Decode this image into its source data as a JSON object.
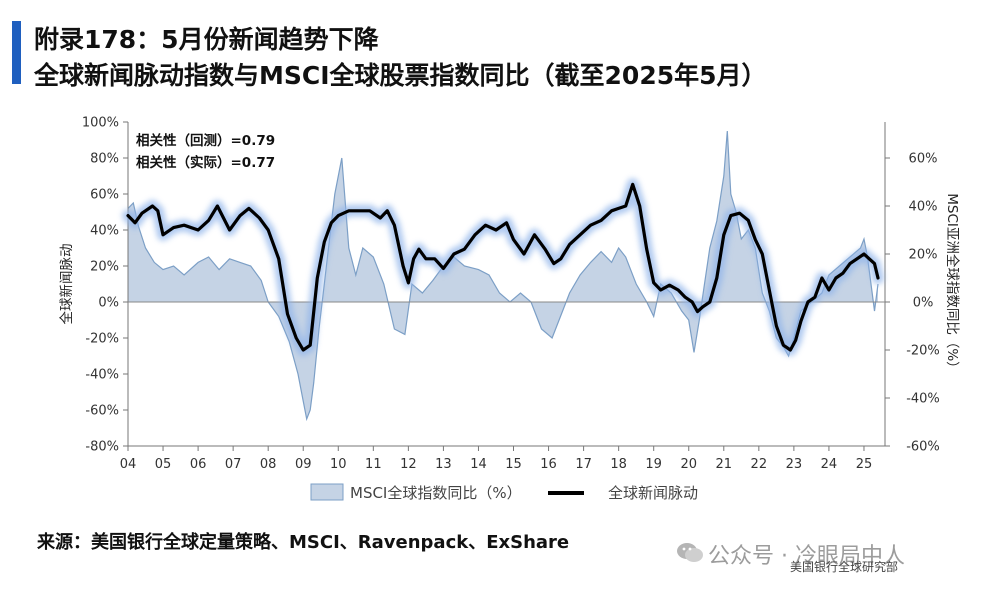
{
  "header": {
    "title_line1": "附录178：5月份新闻趋势下降",
    "title_line2": "全球新闻脉动指数与MSCI全球股票指数同比（截至2025年5月）",
    "accent_color": "#1f5fbf"
  },
  "footer": {
    "source": "来源：美国银行全球定量策略、MSCI、Ravenpack、ExShare",
    "watermark": "公众号 · 冷眼局中人",
    "watermark_icon": "wechat-icon",
    "watermark_sub": "美国银行全球研究部"
  },
  "chart_data": {
    "type": "area",
    "annotations": [
      "相关性（回测）=0.79",
      "相关性（实际）=0.77"
    ],
    "ylabel_left": "全球新闻脉动",
    "ylabel_right": "MSCI亚洲全球指数同比（%）",
    "y_left": {
      "range": [
        -80,
        100
      ],
      "ticks": [
        "100%",
        "80%",
        "60%",
        "40%",
        "20%",
        "0%",
        "-20%",
        "-40%",
        "-60%",
        "-80%"
      ]
    },
    "y_right": {
      "range": [
        -60,
        75
      ],
      "ticks": [
        "60%",
        "40%",
        "20%",
        "0%",
        "-20%",
        "-40%",
        "-60%"
      ]
    },
    "x": {
      "range": [
        2004,
        2025.6
      ],
      "ticks": [
        "04",
        "05",
        "06",
        "07",
        "08",
        "09",
        "10",
        "11",
        "12",
        "13",
        "14",
        "15",
        "16",
        "17",
        "18",
        "19",
        "20",
        "21",
        "22",
        "23",
        "24",
        "25"
      ]
    },
    "colors": {
      "area_fill": "#c5d3e5",
      "area_line": "#7c9fc6",
      "news_line": "#000000",
      "news_glow": "#8fb4ea"
    },
    "legend": {
      "position": "bottom",
      "items": [
        "MSCI全球指数同比（%）",
        "全球新闻脉动"
      ]
    },
    "series": [
      {
        "name": "MSCI全球指数同比（%）",
        "axis": "left",
        "type": "area",
        "x": [
          2004.0,
          2004.15,
          2004.3,
          2004.5,
          2004.75,
          2005.0,
          2005.3,
          2005.6,
          2006.0,
          2006.3,
          2006.6,
          2006.9,
          2007.2,
          2007.5,
          2007.8,
          2008.0,
          2008.3,
          2008.6,
          2008.85,
          2009.0,
          2009.1,
          2009.2,
          2009.3,
          2009.45,
          2009.6,
          2009.75,
          2009.9,
          2010.1,
          2010.3,
          2010.5,
          2010.7,
          2011.0,
          2011.3,
          2011.6,
          2011.9,
          2012.1,
          2012.4,
          2012.7,
          2013.0,
          2013.3,
          2013.6,
          2014.0,
          2014.3,
          2014.6,
          2014.9,
          2015.2,
          2015.5,
          2015.8,
          2016.1,
          2016.3,
          2016.6,
          2016.9,
          2017.2,
          2017.5,
          2017.8,
          2018.0,
          2018.2,
          2018.5,
          2018.8,
          2019.0,
          2019.2,
          2019.5,
          2019.8,
          2020.0,
          2020.15,
          2020.3,
          2020.45,
          2020.6,
          2020.8,
          2021.0,
          2021.1,
          2021.2,
          2021.35,
          2021.5,
          2021.7,
          2021.9,
          2022.1,
          2022.3,
          2022.5,
          2022.7,
          2022.85,
          2023.0,
          2023.2,
          2023.5,
          2023.8,
          2024.0,
          2024.3,
          2024.6,
          2024.9,
          2025.0,
          2025.1,
          2025.2,
          2025.3,
          2025.4
        ],
        "values": [
          52,
          55,
          42,
          30,
          22,
          18,
          20,
          15,
          22,
          25,
          18,
          24,
          22,
          20,
          12,
          0,
          -8,
          -22,
          -40,
          -55,
          -65,
          -60,
          -45,
          -15,
          10,
          35,
          60,
          80,
          30,
          15,
          30,
          25,
          10,
          -15,
          -18,
          10,
          5,
          12,
          20,
          25,
          20,
          18,
          15,
          5,
          0,
          5,
          0,
          -15,
          -20,
          -10,
          5,
          15,
          22,
          28,
          22,
          30,
          25,
          10,
          0,
          -8,
          10,
          5,
          -5,
          -10,
          -28,
          -10,
          10,
          30,
          45,
          70,
          95,
          60,
          50,
          35,
          40,
          30,
          5,
          -5,
          -20,
          -25,
          -30,
          -20,
          -5,
          0,
          5,
          15,
          20,
          25,
          30,
          35,
          25,
          10,
          -5,
          10
        ]
      },
      {
        "name": "全球新闻脉动",
        "axis": "right",
        "type": "line",
        "x": [
          2004.0,
          2004.2,
          2004.4,
          2004.7,
          2004.85,
          2005.0,
          2005.3,
          2005.6,
          2006.0,
          2006.3,
          2006.55,
          2006.9,
          2007.2,
          2007.45,
          2007.75,
          2008.0,
          2008.3,
          2008.55,
          2008.8,
          2009.0,
          2009.2,
          2009.4,
          2009.6,
          2009.8,
          2010.0,
          2010.3,
          2010.6,
          2010.9,
          2011.2,
          2011.4,
          2011.6,
          2011.85,
          2012.0,
          2012.15,
          2012.3,
          2012.5,
          2012.75,
          2013.0,
          2013.3,
          2013.6,
          2013.9,
          2014.2,
          2014.5,
          2014.8,
          2015.0,
          2015.3,
          2015.6,
          2015.9,
          2016.15,
          2016.35,
          2016.6,
          2016.9,
          2017.2,
          2017.5,
          2017.8,
          2018.0,
          2018.2,
          2018.4,
          2018.6,
          2018.8,
          2019.0,
          2019.2,
          2019.45,
          2019.7,
          2019.9,
          2020.1,
          2020.25,
          2020.4,
          2020.6,
          2020.8,
          2021.0,
          2021.2,
          2021.45,
          2021.7,
          2021.9,
          2022.1,
          2022.3,
          2022.5,
          2022.7,
          2022.9,
          2023.05,
          2023.2,
          2023.4,
          2023.6,
          2023.8,
          2024.0,
          2024.2,
          2024.4,
          2024.6,
          2024.8,
          2025.0,
          2025.15,
          2025.3,
          2025.4
        ],
        "values": [
          36,
          33,
          37,
          40,
          38,
          28,
          31,
          32,
          30,
          34,
          40,
          30,
          36,
          39,
          35,
          30,
          18,
          -5,
          -15,
          -20,
          -18,
          10,
          25,
          33,
          36,
          38,
          38,
          38,
          35,
          38,
          32,
          15,
          8,
          18,
          22,
          18,
          18,
          14,
          20,
          22,
          28,
          32,
          30,
          33,
          26,
          20,
          28,
          22,
          16,
          18,
          24,
          28,
          32,
          34,
          38,
          39,
          40,
          49,
          40,
          22,
          8,
          5,
          7,
          5,
          2,
          0,
          -4,
          -2,
          0,
          10,
          28,
          36,
          37,
          34,
          26,
          20,
          5,
          -10,
          -18,
          -20,
          -16,
          -8,
          0,
          2,
          10,
          5,
          10,
          12,
          16,
          18,
          20,
          18,
          16,
          10
        ]
      }
    ]
  }
}
